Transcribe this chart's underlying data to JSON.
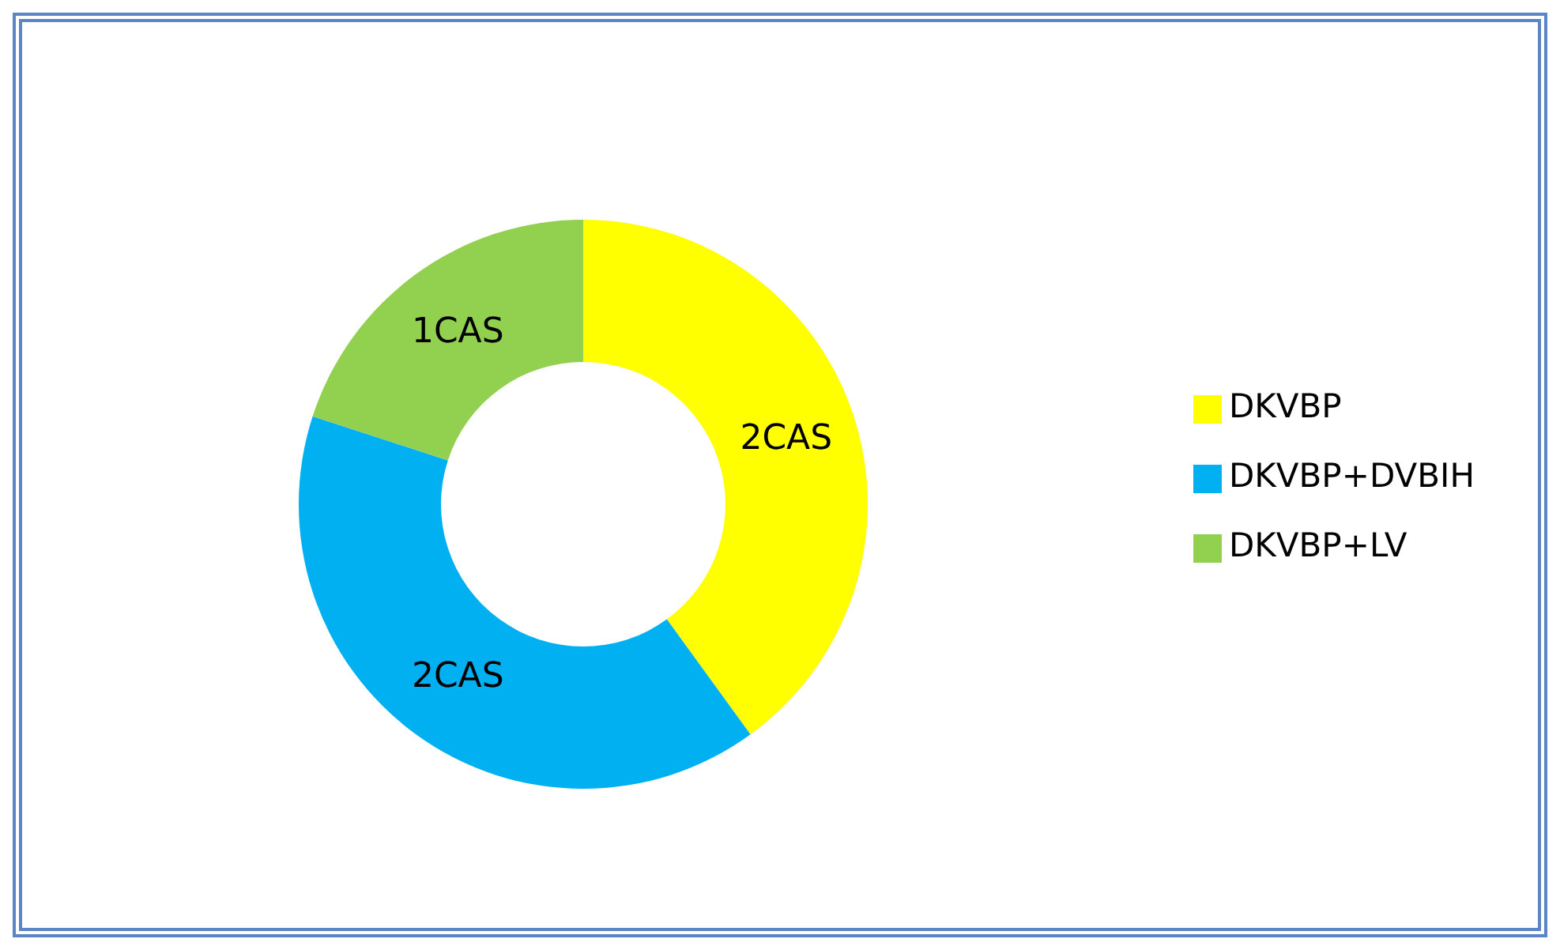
{
  "chart_data": {
    "type": "donut",
    "categories": [
      "DKVBP",
      "DKVBP+DVBIH",
      "DKVBP+LV"
    ],
    "values": [
      2,
      2,
      1
    ],
    "value_labels": [
      "2CAS",
      "2CAS",
      "1CAS"
    ],
    "colors": [
      "#ffff00",
      "#00b0f0",
      "#92d050"
    ],
    "legend": "right"
  }
}
